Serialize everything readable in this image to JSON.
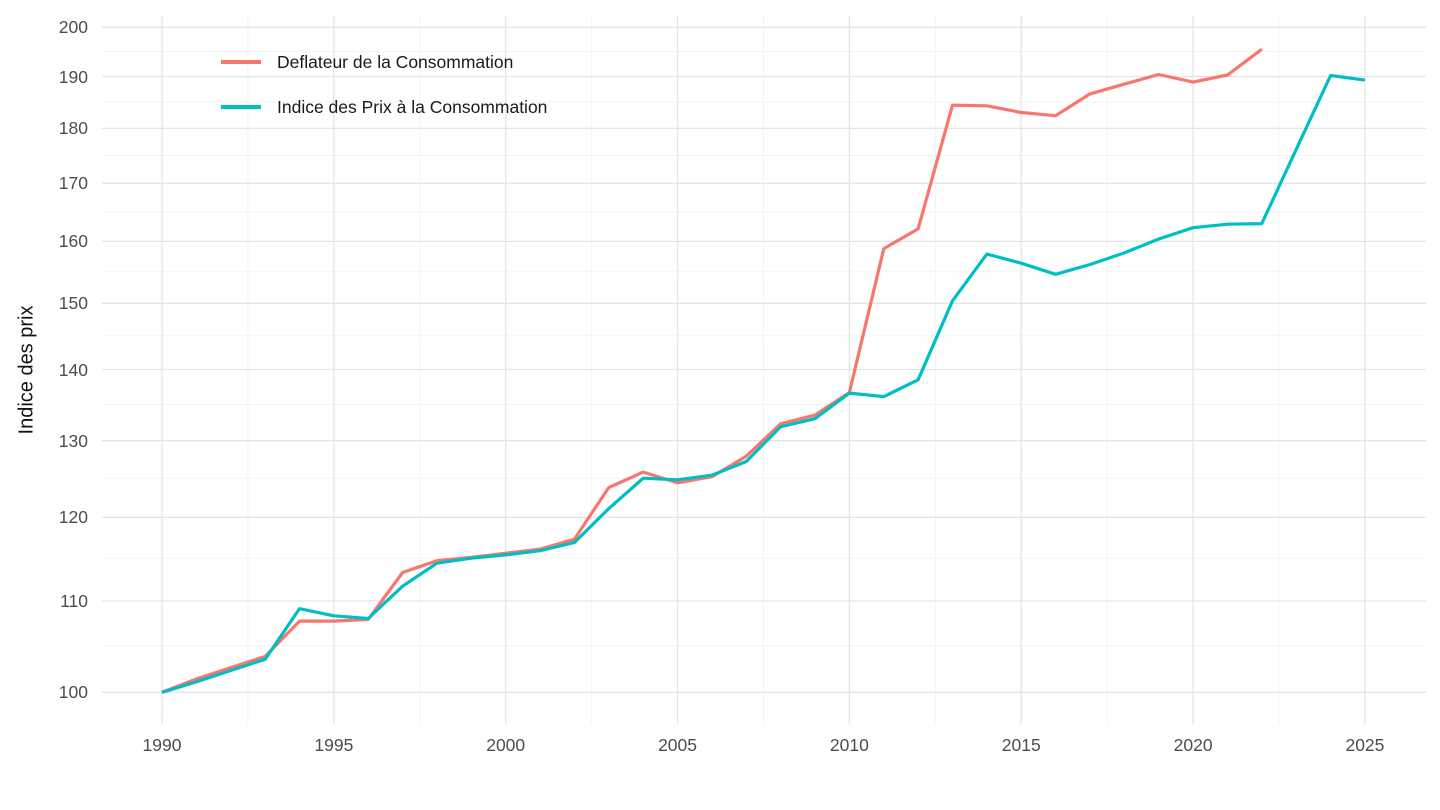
{
  "chart_data": {
    "type": "line",
    "title": "",
    "xlabel": "",
    "ylabel": "Indice des prix",
    "y_scale": "log10",
    "grid": "major+minor",
    "legend_position": "inside-top-left",
    "x_ticks": [
      1990,
      1995,
      2000,
      2005,
      2010,
      2015,
      2020,
      2025
    ],
    "y_ticks": [
      100,
      110,
      120,
      130,
      140,
      150,
      160,
      170,
      180,
      190,
      200
    ],
    "x_range": [
      1988.25,
      2026.75
    ],
    "y_range": [
      96.7,
      202.4
    ],
    "colors": {
      "grid_major": "#e5e5e5",
      "grid_minor": "#f0f0f0",
      "tick_text": "#4d4d4d",
      "axis_title_text": "#111111"
    },
    "series": [
      {
        "name": "Deflateur de la Consommation",
        "color": "#F8766D",
        "x": [
          1990,
          1991,
          1992,
          1993,
          1994,
          1995,
          1996,
          1997,
          1998,
          1999,
          2000,
          2001,
          2002,
          2003,
          2004,
          2005,
          2006,
          2007,
          2008,
          2009,
          2010,
          2011,
          2012,
          2013,
          2014,
          2015,
          2016,
          2017,
          2018,
          2019,
          2020,
          2021,
          2022
        ],
        "values": [
          100.0,
          101.4,
          102.6,
          103.8,
          107.7,
          107.7,
          107.9,
          113.3,
          114.7,
          115.1,
          115.6,
          116.1,
          117.3,
          123.8,
          125.8,
          124.4,
          125.2,
          127.9,
          132.3,
          133.5,
          136.7,
          158.8,
          162.1,
          184.4,
          184.3,
          183.0,
          182.4,
          186.6,
          188.5,
          190.4,
          188.9,
          190.3,
          195.5
        ]
      },
      {
        "name": "Indice des Prix à la Consommation",
        "color": "#00BFC4",
        "x": [
          1990,
          1991,
          1992,
          1993,
          1994,
          1995,
          1996,
          1997,
          1998,
          1999,
          2000,
          2001,
          2002,
          2003,
          2004,
          2005,
          2006,
          2007,
          2008,
          2009,
          2010,
          2011,
          2012,
          2013,
          2014,
          2015,
          2016,
          2017,
          2018,
          2019,
          2020,
          2021,
          2022,
          2023,
          2024,
          2025
        ],
        "values": [
          100.0,
          101.1,
          102.3,
          103.5,
          109.1,
          108.3,
          108.0,
          111.7,
          114.4,
          115.0,
          115.4,
          115.9,
          116.9,
          121.1,
          125.0,
          124.8,
          125.4,
          127.2,
          131.9,
          133.0,
          136.6,
          136.1,
          138.5,
          150.4,
          157.9,
          156.4,
          154.6,
          156.2,
          158.1,
          160.4,
          162.3,
          162.9,
          163.0,
          176.1,
          190.2,
          189.3
        ]
      }
    ]
  }
}
